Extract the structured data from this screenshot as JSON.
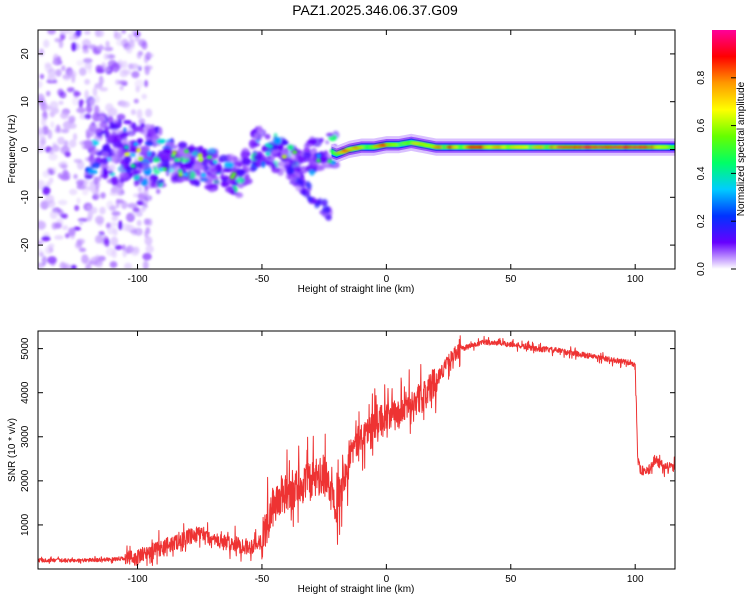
{
  "title": "PAZ1.2025.346.06.37.G09",
  "chart_data": [
    {
      "type": "heatmap",
      "title": "PAZ1.2025.346.06.37.G09",
      "xlabel": "Height of straight line (km)",
      "ylabel": "Frequency (Hz)",
      "xlim": [
        -140,
        116
      ],
      "ylim": [
        -25,
        25
      ],
      "x_ticks": [
        -100,
        -50,
        0,
        50,
        100
      ],
      "x_tick_labels": [
        "-100",
        "-50",
        "0",
        "50",
        "100"
      ],
      "y_ticks": [
        -20,
        -10,
        0,
        10,
        20
      ],
      "y_tick_labels": [
        "-20",
        "-10",
        "0",
        "10",
        "20"
      ],
      "ridge": {
        "x": [
          -115,
          -100,
          -90,
          -80,
          -72,
          -65,
          -58,
          -52,
          -48,
          -40,
          -35,
          -30,
          -25,
          -20,
          -15,
          -10,
          -5,
          0,
          5,
          10,
          20,
          40,
          60,
          80,
          100,
          110,
          116
        ],
        "freq": [
          0,
          -1,
          -2,
          -3,
          -4,
          -5,
          -6,
          1,
          0,
          -2,
          -4,
          -1,
          0,
          -1,
          0,
          0.5,
          0.5,
          1,
          1,
          1.5,
          0.5,
          0.5,
          0.5,
          0.5,
          0.5,
          0.5,
          0.5
        ]
      },
      "colorbar": {
        "label": "Normalized spectral amplitude",
        "range": [
          0,
          1
        ],
        "ticks": [
          0.0,
          0.2,
          0.4,
          0.6,
          0.8
        ],
        "tick_labels": [
          "0.0",
          "0.2",
          "0.4",
          "0.6",
          "0.8"
        ],
        "colors": [
          "#ffffff",
          "#6600ff",
          "#0033ff",
          "#00ccff",
          "#00ff66",
          "#66ff00",
          "#ffff00",
          "#ff9900",
          "#ff0000",
          "#ff0099"
        ]
      }
    },
    {
      "type": "line",
      "xlabel": "Height of straight line (km)",
      "ylabel": "SNR (10 * v/v)",
      "xlim": [
        -140,
        116
      ],
      "ylim": [
        0,
        5400
      ],
      "x_ticks": [
        -100,
        -50,
        0,
        50,
        100
      ],
      "x_tick_labels": [
        "-100",
        "-50",
        "0",
        "50",
        "100"
      ],
      "y_ticks": [
        1000,
        2000,
        3000,
        4000,
        5000
      ],
      "y_tick_labels": [
        "1000",
        "2000",
        "3000",
        "4000",
        "5000"
      ],
      "color": "#ee3333",
      "series": [
        {
          "name": "SNR",
          "x": [
            -140,
            -130,
            -120,
            -110,
            -100,
            -90,
            -80,
            -75,
            -70,
            -65,
            -60,
            -55,
            -50,
            -45,
            -40,
            -35,
            -30,
            -25,
            -20,
            -15,
            -10,
            -5,
            0,
            5,
            10,
            15,
            20,
            25,
            30,
            40,
            50,
            60,
            70,
            80,
            90,
            100,
            101,
            102,
            105,
            108,
            110,
            116
          ],
          "y": [
            200,
            190,
            200,
            220,
            260,
            500,
            700,
            800,
            650,
            600,
            550,
            500,
            650,
            1500,
            1700,
            1900,
            2000,
            2100,
            1500,
            2600,
            3000,
            3300,
            3450,
            3500,
            3800,
            3900,
            4300,
            4700,
            5000,
            5150,
            5100,
            5000,
            4950,
            4850,
            4750,
            4650,
            2500,
            2250,
            2200,
            2500,
            2350,
            2300
          ]
        }
      ]
    }
  ]
}
